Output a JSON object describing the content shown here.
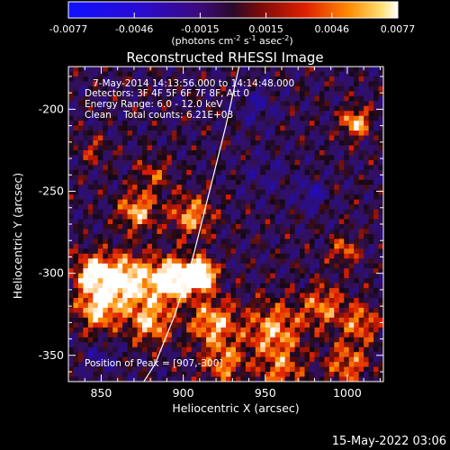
{
  "chart_data": {
    "type": "heatmap",
    "title": "Reconstructed RHESSI Image",
    "xlabel": "Heliocentric X (arcsec)",
    "ylabel": "Heliocentric Y (arcsec)",
    "xlim": [
      830,
      1022
    ],
    "ylim": [
      -366,
      -174
    ],
    "xticks": [
      850,
      900,
      950,
      1000
    ],
    "yticks": [
      -200,
      -250,
      -300,
      -350
    ],
    "colorbar": {
      "range": [
        -0.0077,
        0.0077
      ],
      "ticks": [
        "-0.0077",
        "-0.0046",
        "-0.0015",
        "0.0015",
        "0.0046",
        "0.0077"
      ],
      "unit_text": "(photons cm",
      "unit_exp1": "-2",
      "unit_mid1": " s",
      "unit_exp2": "-1",
      "unit_mid2": " asec",
      "unit_exp3": "-2",
      "unit_end": ")"
    },
    "annotations": {
      "time_range": "7-May-2014 14:13:56.000 to 14:14:48.000",
      "detectors": "Detectors: 3F 4F 5F 6F 7F 8F, Att 0",
      "energy": "Energy Range: 6.0 - 12.0 keV",
      "clean": "Clean    Total counts: 6.21E+03",
      "peak_label": "Position of Peak = [907,-300]"
    },
    "peak": [
      907,
      -300
    ],
    "limb_arc": [
      [
        934,
        -174
      ],
      [
        926,
        -210
      ],
      [
        916,
        -250
      ],
      [
        906,
        -290
      ],
      [
        895,
        -325
      ],
      [
        883,
        -355
      ],
      [
        876,
        -366
      ]
    ],
    "sources": [
      {
        "x": 910,
        "y": -301,
        "amp": 1.0,
        "s": 6
      },
      {
        "x": 893,
        "y": -304,
        "amp": 0.7,
        "s": 9
      },
      {
        "x": 866,
        "y": -305,
        "amp": 0.62,
        "s": 11
      },
      {
        "x": 845,
        "y": -300,
        "amp": 0.55,
        "s": 8
      },
      {
        "x": 848,
        "y": -322,
        "amp": 0.5,
        "s": 9
      },
      {
        "x": 880,
        "y": -330,
        "amp": 0.45,
        "s": 9
      },
      {
        "x": 918,
        "y": -330,
        "amp": 0.45,
        "s": 10
      },
      {
        "x": 955,
        "y": -335,
        "amp": 0.42,
        "s": 12
      },
      {
        "x": 985,
        "y": -320,
        "amp": 0.35,
        "s": 9
      },
      {
        "x": 1008,
        "y": -330,
        "amp": 0.35,
        "s": 8
      },
      {
        "x": 1000,
        "y": -355,
        "amp": 0.35,
        "s": 9
      },
      {
        "x": 960,
        "y": -360,
        "amp": 0.3,
        "s": 9
      },
      {
        "x": 925,
        "y": -355,
        "amp": 0.35,
        "s": 9
      },
      {
        "x": 872,
        "y": -262,
        "amp": 0.45,
        "s": 8
      },
      {
        "x": 905,
        "y": -265,
        "amp": 0.4,
        "s": 9
      },
      {
        "x": 882,
        "y": -240,
        "amp": 0.25,
        "s": 7
      },
      {
        "x": 1005,
        "y": -208,
        "amp": 0.5,
        "s": 6
      },
      {
        "x": 998,
        "y": -286,
        "amp": 0.32,
        "s": 6
      },
      {
        "x": 845,
        "y": -225,
        "amp": 0.2,
        "s": 6
      }
    ],
    "negatives": [
      {
        "x": 978,
        "y": -252,
        "amp": 0.25,
        "s": 6
      },
      {
        "x": 945,
        "y": -198,
        "amp": 0.18,
        "s": 8
      },
      {
        "x": 850,
        "y": -352,
        "amp": 0.18,
        "s": 6
      },
      {
        "x": 950,
        "y": -240,
        "amp": 0.12,
        "s": 10
      }
    ]
  },
  "footer": {
    "date": "15-May-2022 03:06"
  }
}
